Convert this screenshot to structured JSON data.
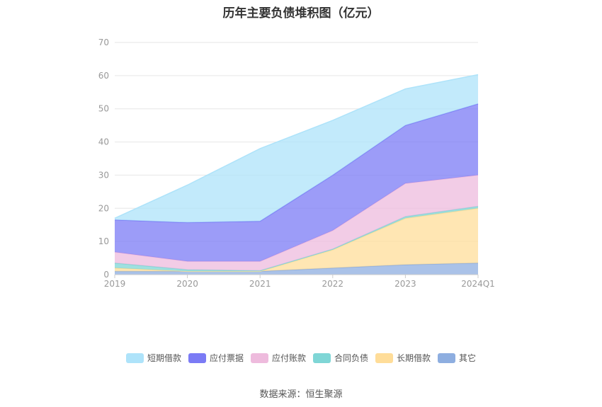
{
  "chart_data": {
    "type": "area",
    "stacked": true,
    "title": "历年主要负债堆积图（亿元）",
    "categories": [
      "2019",
      "2020",
      "2021",
      "2022",
      "2023",
      "2024Q1"
    ],
    "y_ticks": [
      "0",
      "10",
      "20",
      "30",
      "40",
      "50",
      "60",
      "70"
    ],
    "ylim": [
      0,
      70
    ],
    "grid": true,
    "legend_position": "bottom",
    "series": [
      {
        "name": "其它",
        "color": "#8eaee0",
        "values": [
          1.0,
          1.0,
          1.0,
          2.0,
          3.0,
          3.5
        ]
      },
      {
        "name": "长期借款",
        "color": "#ffdd99",
        "values": [
          1.0,
          0.0,
          0.0,
          5.5,
          14.0,
          16.5
        ]
      },
      {
        "name": "合同负债",
        "color": "#7fd6d6",
        "values": [
          1.5,
          0.5,
          0.2,
          0.2,
          0.5,
          0.6
        ]
      },
      {
        "name": "应付账款",
        "color": "#eebbdd",
        "values": [
          3.3,
          2.5,
          2.8,
          5.6,
          10.0,
          9.4
        ]
      },
      {
        "name": "应付票据",
        "color": "#7b7bf5",
        "values": [
          9.7,
          11.7,
          12.1,
          16.7,
          17.5,
          21.5
        ]
      },
      {
        "name": "短期借款",
        "color": "#aee3fa",
        "values": [
          0.5,
          11.3,
          21.9,
          16.5,
          11.0,
          8.8
        ]
      }
    ],
    "legend_order": [
      "短期借款",
      "应付票据",
      "应付账款",
      "合同负债",
      "长期借款",
      "其它"
    ]
  },
  "source_text": "数据来源：恒生聚源"
}
